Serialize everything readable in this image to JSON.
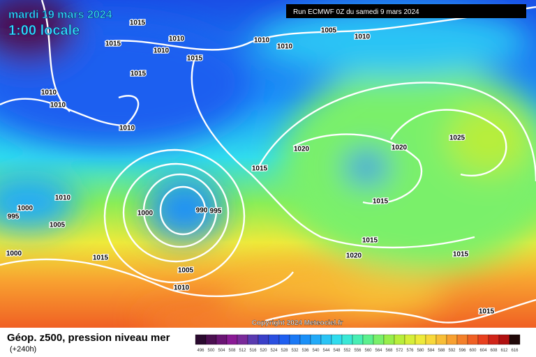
{
  "header": {
    "title": "mardi 19 mars 2024",
    "time": "1:00 locale",
    "run": "Run ECMWF 0Z du samedi 9 mars 2024"
  },
  "footer": {
    "caption": "Géop. z500, pression niveau mer",
    "lead": "(+240h)",
    "copyright": "Copyright 2024 Meteociel.fr"
  },
  "isobar_labels": [
    "1015",
    "1015",
    "1010",
    "1010",
    "1015",
    "1015",
    "1010",
    "1010",
    "1005",
    "1010",
    "1010",
    "1010",
    "1010",
    "1020",
    "1020",
    "1025",
    "1015",
    "1010",
    "1000",
    "995",
    "1005",
    "1000",
    "990",
    "995",
    "1015",
    "1015",
    "1020",
    "1015",
    "1000",
    "1015",
    "1005",
    "1010",
    "1015"
  ],
  "colorbar": {
    "labels": [
      496,
      500,
      504,
      508,
      512,
      516,
      520,
      524,
      528,
      532,
      536,
      540,
      544,
      548,
      552,
      556,
      560,
      564,
      568,
      572,
      576,
      580,
      584,
      588,
      592,
      596,
      600,
      604,
      608,
      612,
      616
    ],
    "colors": [
      "#2a0a2e",
      "#4b0f50",
      "#6a1473",
      "#8a1a95",
      "#7a2a9a",
      "#5a3ab0",
      "#3a3fc8",
      "#2a4fe0",
      "#1f5ff0",
      "#1a78f5",
      "#1a90f8",
      "#22aaf8",
      "#2ac4f5",
      "#30dcee",
      "#3ae8d6",
      "#48eeb4",
      "#5cf08e",
      "#7af06a",
      "#98ee4a",
      "#b8ee3a",
      "#d6ee38",
      "#eeea3a",
      "#f8d83a",
      "#f8be36",
      "#f8a030",
      "#f4802a",
      "#f06024",
      "#e8401e",
      "#d02418",
      "#b01010",
      "#200808"
    ]
  }
}
